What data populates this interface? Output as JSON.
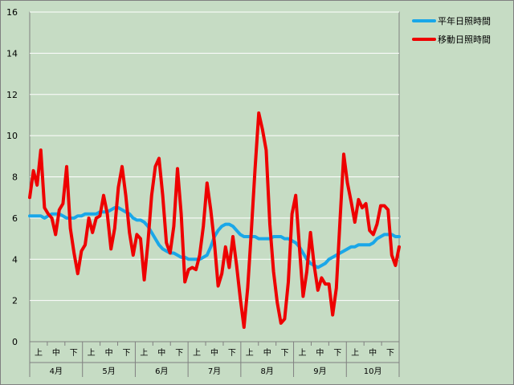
{
  "chart_data": {
    "type": "line",
    "title": "",
    "xlabel": "",
    "ylabel": "",
    "ylim": [
      0,
      16
    ],
    "yticks": [
      "0",
      "2",
      "4",
      "6",
      "8",
      "10",
      "12",
      "14",
      "16"
    ],
    "grid": true,
    "legend_position": "top-right",
    "sub_categories": [
      "上",
      "中",
      "下"
    ],
    "months": [
      "4月",
      "5月",
      "6月",
      "7月",
      "8月",
      "9月",
      "10月"
    ],
    "series": [
      {
        "name": "平年日照時間",
        "color": "#1aa7e8",
        "values": [
          6.1,
          6.1,
          6.1,
          6.1,
          6.0,
          6.1,
          6.2,
          6.2,
          6.2,
          6.1,
          6.0,
          6.0,
          6.0,
          6.1,
          6.1,
          6.2,
          6.2,
          6.2,
          6.2,
          6.3,
          6.3,
          6.3,
          6.4,
          6.5,
          6.5,
          6.4,
          6.3,
          6.2,
          6.0,
          5.9,
          5.9,
          5.8,
          5.6,
          5.3,
          5.0,
          4.7,
          4.5,
          4.4,
          4.3,
          4.3,
          4.2,
          4.1,
          4.1,
          4.0,
          4.0,
          4.0,
          4.0,
          4.1,
          4.2,
          4.6,
          5.1,
          5.4,
          5.6,
          5.7,
          5.7,
          5.6,
          5.4,
          5.2,
          5.1,
          5.1,
          5.1,
          5.1,
          5.0,
          5.0,
          5.0,
          5.0,
          5.1,
          5.1,
          5.1,
          5.0,
          5.0,
          4.9,
          4.8,
          4.6,
          4.3,
          4.0,
          3.8,
          3.7,
          3.6,
          3.7,
          3.8,
          4.0,
          4.1,
          4.2,
          4.3,
          4.4,
          4.5,
          4.6,
          4.6,
          4.7,
          4.7,
          4.7,
          4.7,
          4.8,
          5.0,
          5.1,
          5.2,
          5.2,
          5.2,
          5.1,
          5.1
        ]
      },
      {
        "name": "移動日照時間",
        "color": "#ee0000",
        "values": [
          7.0,
          8.3,
          7.6,
          9.3,
          6.5,
          6.2,
          6.0,
          5.2,
          6.4,
          6.7,
          8.5,
          5.5,
          4.3,
          3.3,
          4.4,
          4.7,
          6.0,
          5.3,
          6.0,
          6.1,
          7.1,
          6.2,
          4.5,
          5.5,
          7.5,
          8.5,
          7.1,
          5.3,
          4.2,
          5.2,
          5.0,
          3.0,
          4.8,
          7.1,
          8.5,
          8.9,
          7.1,
          4.8,
          4.3,
          5.6,
          8.4,
          6.2,
          2.9,
          3.5,
          3.6,
          3.5,
          4.2,
          5.6,
          7.7,
          6.4,
          4.8,
          2.7,
          3.3,
          4.6,
          3.6,
          5.1,
          3.7,
          2.1,
          0.7,
          2.6,
          5.4,
          8.4,
          11.1,
          10.3,
          9.3,
          5.7,
          3.4,
          1.9,
          0.9,
          1.1,
          2.9,
          6.2,
          7.1,
          4.6,
          2.2,
          3.4,
          5.3,
          3.7,
          2.5,
          3.1,
          2.8,
          2.8,
          1.3,
          2.6,
          5.9,
          9.1,
          7.7,
          6.8,
          5.8,
          6.9,
          6.5,
          6.7,
          5.4,
          5.2,
          5.7,
          6.6,
          6.6,
          6.4,
          4.2,
          3.7,
          4.6
        ]
      }
    ]
  }
}
